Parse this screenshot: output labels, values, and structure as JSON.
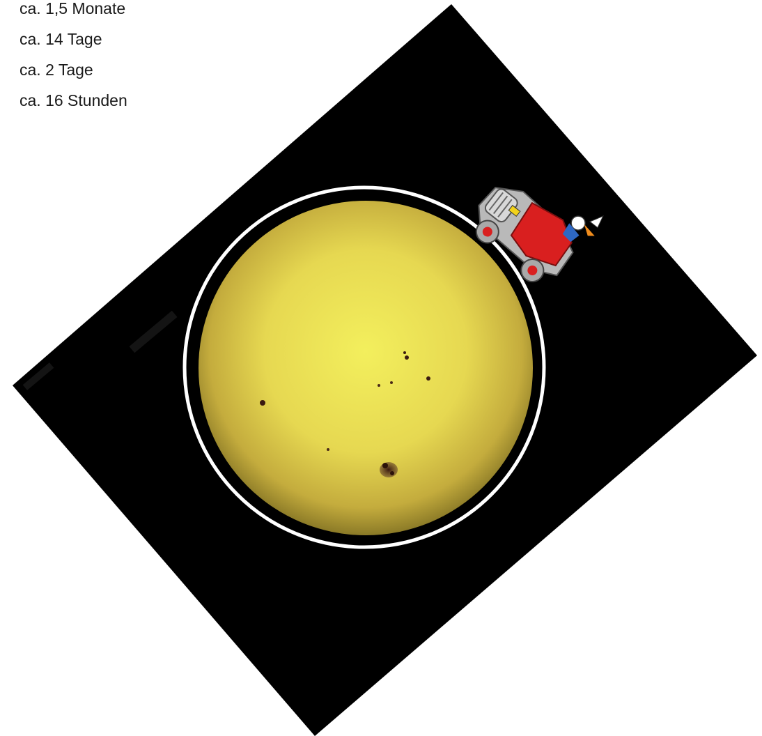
{
  "lines": [
    "ca. 1,5 Monate",
    "ca. 14 Tage",
    "ca. 2 Tage",
    "ca. 16 Stunden"
  ],
  "colors": {
    "background": "#ffffff",
    "panel": "#000000",
    "sun_center": "#f2ee5a",
    "sun_edge": "#8d7a26",
    "ring": "#ffffff",
    "car_body": "#d91f1f",
    "car_metal": "#b9b9b9"
  },
  "icons": {
    "sun": "sun-disk-icon",
    "car": "cartoon-car-icon"
  }
}
